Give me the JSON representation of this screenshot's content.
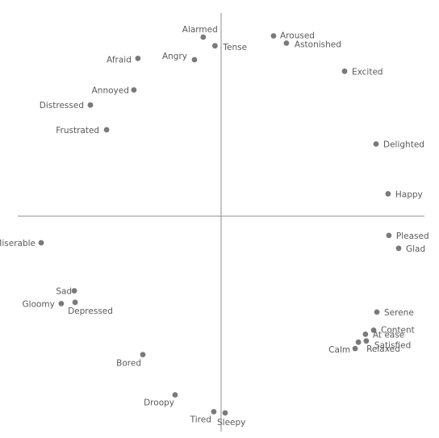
{
  "chart_data": {
    "type": "scatter",
    "title": "",
    "xlabel": "",
    "ylabel": "",
    "xlim": [
      -1,
      1
    ],
    "ylim": [
      -1,
      1
    ],
    "grid": false,
    "legend": "none",
    "colors": {
      "point": "#7a7a7a",
      "axis": "#8c8c8c",
      "label": "#5a5a5a"
    },
    "points": [
      {
        "label": "Alarmed",
        "x": -0.088,
        "y": 0.881
      },
      {
        "label": "Tense",
        "x": -0.03,
        "y": 0.838
      },
      {
        "label": "Aroused",
        "x": 0.258,
        "y": 0.887
      },
      {
        "label": "Astonished",
        "x": 0.321,
        "y": 0.851
      },
      {
        "label": "Afraid",
        "x": -0.409,
        "y": 0.776
      },
      {
        "label": "Angry",
        "x": -0.131,
        "y": 0.77
      },
      {
        "label": "Excited",
        "x": 0.607,
        "y": 0.713
      },
      {
        "label": "Annoyed",
        "x": -0.429,
        "y": 0.621
      },
      {
        "label": "Distressed",
        "x": -0.643,
        "y": 0.547
      },
      {
        "label": "Frustrated",
        "x": -0.563,
        "y": 0.425
      },
      {
        "label": "Delighted",
        "x": 0.762,
        "y": 0.355
      },
      {
        "label": "Happy",
        "x": 0.821,
        "y": 0.11
      },
      {
        "label": "Pleased",
        "x": 0.825,
        "y": -0.095
      },
      {
        "label": "Glad",
        "x": 0.873,
        "y": -0.158
      },
      {
        "label": "Miserable",
        "x": -0.885,
        "y": -0.131
      },
      {
        "label": "Sad",
        "x": -0.722,
        "y": -0.367
      },
      {
        "label": "Gloomy",
        "x": -0.786,
        "y": -0.43
      },
      {
        "label": "Depressed",
        "x": -0.718,
        "y": -0.424
      },
      {
        "label": "Serene",
        "x": 0.766,
        "y": -0.472
      },
      {
        "label": "Content",
        "x": 0.75,
        "y": -0.561
      },
      {
        "label": "At ease",
        "x": 0.71,
        "y": -0.581
      },
      {
        "label": "Satisfied",
        "x": 0.714,
        "y": -0.614
      },
      {
        "label": "Relaxed",
        "x": 0.675,
        "y": -0.62
      },
      {
        "label": "Calm",
        "x": 0.659,
        "y": -0.651
      },
      {
        "label": "Bored",
        "x": -0.385,
        "y": -0.681
      },
      {
        "label": "Droopy",
        "x": -0.226,
        "y": -0.879
      },
      {
        "label": "Tired",
        "x": -0.036,
        "y": -0.962
      },
      {
        "label": "Sleepy",
        "x": 0.02,
        "y": -0.968
      }
    ]
  }
}
